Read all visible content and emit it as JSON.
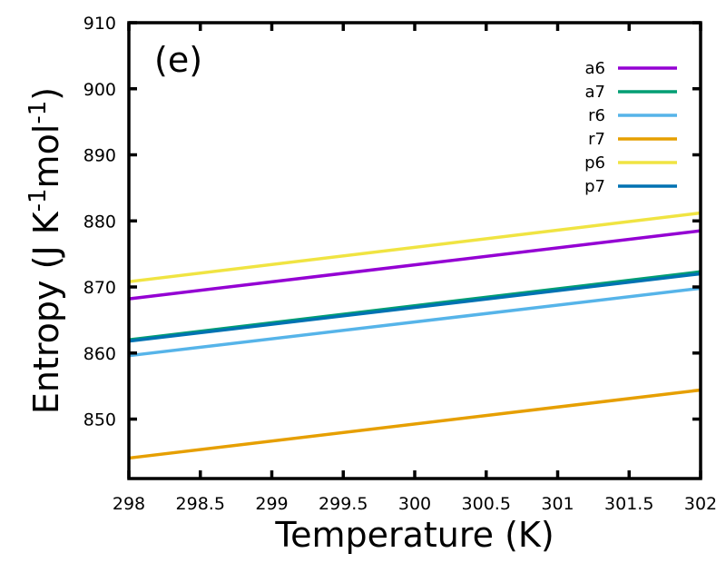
{
  "chart_data": {
    "type": "line",
    "panel_label": "(e)",
    "xlabel": "Temperature (K)",
    "ylabel": {
      "base": "Entropy (J K",
      "sup1": "-1",
      "mid": "mol",
      "sup2": "-1",
      "end": ")"
    },
    "xlim": [
      298,
      302
    ],
    "ylim": [
      841,
      910
    ],
    "x_ticks": [
      298,
      298.5,
      299,
      299.5,
      300,
      300.5,
      301,
      301.5,
      302
    ],
    "x_tick_labels": [
      "298",
      "298.5",
      "299",
      "299.5",
      "300",
      "300.5",
      "301",
      "301.5",
      "302"
    ],
    "y_ticks": [
      850,
      860,
      870,
      880,
      890,
      900,
      910
    ],
    "y_tick_labels": [
      "850",
      "860",
      "870",
      "880",
      "890",
      "900",
      "910"
    ],
    "legend_position": "top-right",
    "grid": false,
    "series": [
      {
        "name": "a6",
        "color": "#9400d3",
        "x": [
          298,
          302
        ],
        "values": [
          868.2,
          878.5
        ]
      },
      {
        "name": "a7",
        "color": "#009e73",
        "x": [
          298,
          302
        ],
        "values": [
          862.0,
          872.3
        ]
      },
      {
        "name": "r6",
        "color": "#56b4e9",
        "x": [
          298,
          302
        ],
        "values": [
          859.6,
          869.8
        ]
      },
      {
        "name": "r7",
        "color": "#e69f00",
        "x": [
          298,
          302
        ],
        "values": [
          844.1,
          854.4
        ]
      },
      {
        "name": "p6",
        "color": "#f0e442",
        "x": [
          298,
          302
        ],
        "values": [
          870.8,
          881.2
        ]
      },
      {
        "name": "p7",
        "color": "#0072b2",
        "x": [
          298,
          302
        ],
        "values": [
          861.8,
          872.0
        ]
      }
    ]
  }
}
